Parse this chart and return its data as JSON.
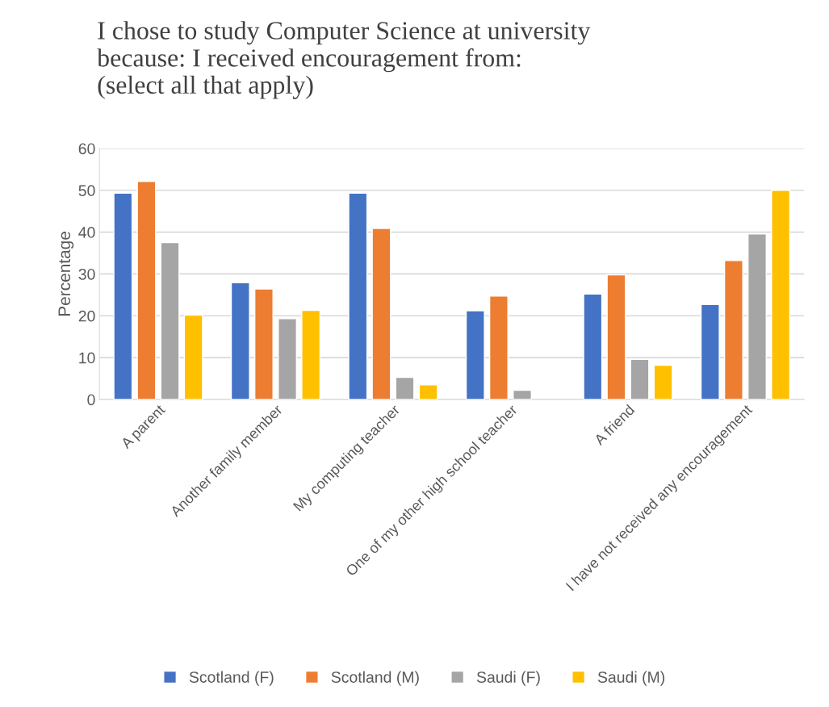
{
  "chart_data": {
    "type": "bar",
    "title": "I chose to study Computer Science at university\nbecause: I received encouragement from:\n(select all that apply)",
    "ylabel": "Percentage",
    "categories": [
      "A parent",
      "Another family member",
      "My computing teacher",
      "One of my other high school teacher",
      "A friend",
      "I have not received any encouragement"
    ],
    "series": [
      {
        "name": "Scotland (F)",
        "color": "#4472c4",
        "values": [
          49.3,
          27.9,
          49.3,
          21.2,
          25.2,
          22.7
        ]
      },
      {
        "name": "Scotland (M)",
        "color": "#ed7d31",
        "values": [
          52.1,
          26.4,
          40.9,
          24.7,
          29.8,
          33.2
        ]
      },
      {
        "name": "Saudi (F)",
        "color": "#a5a5a5",
        "values": [
          37.5,
          19.3,
          5.3,
          2.2,
          9.6,
          39.6
        ]
      },
      {
        "name": "Saudi (M)",
        "color": "#ffc000",
        "values": [
          20.2,
          21.3,
          3.5,
          null,
          8.2,
          50
        ]
      }
    ],
    "ylim": [
      0,
      60
    ],
    "yticks": [
      0,
      10,
      20,
      30,
      40,
      50,
      60
    ],
    "grid": "y",
    "legend": "bottom"
  }
}
